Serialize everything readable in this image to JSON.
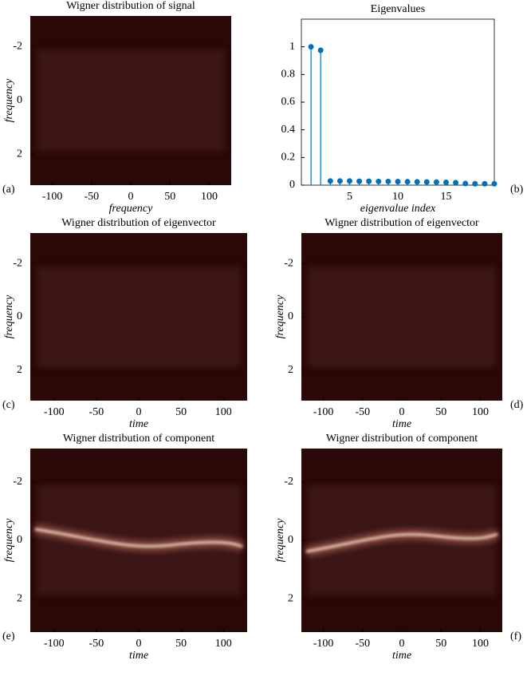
{
  "chart_data": [
    {
      "type": "heatmap",
      "title": "Wigner distribution of signal",
      "xlabel": "frequency",
      "ylabel": "frequency",
      "panel_label": "(a)",
      "color": "#2a0806",
      "xlim": [
        -128,
        128
      ],
      "xticks": [
        -100,
        -50,
        0,
        50,
        100
      ],
      "ylim": [
        -3.14,
        3.14
      ],
      "yticks": [
        -2,
        0,
        2
      ],
      "y_reversed": true
    },
    {
      "type": "stem",
      "title": "Eigenvalues",
      "xlabel": "eigenvalue index",
      "panel_label": "(b)",
      "color": "#0072bd",
      "x": [
        1,
        2,
        3,
        4,
        5,
        6,
        7,
        8,
        9,
        10,
        11,
        12,
        13,
        14,
        15,
        16,
        17,
        18,
        19,
        20
      ],
      "values": [
        1.0,
        0.975,
        0.03,
        0.03,
        0.03,
        0.028,
        0.028,
        0.027,
        0.027,
        0.026,
        0.025,
        0.024,
        0.023,
        0.022,
        0.02,
        0.018,
        0.012,
        0.01,
        0.01,
        0.01
      ],
      "xlim": [
        0,
        20
      ],
      "xticks": [
        5,
        10,
        15
      ],
      "ylim": [
        0,
        1.2
      ],
      "yticks": [
        0,
        0.2,
        0.4,
        0.6,
        0.8,
        1
      ]
    },
    {
      "type": "heatmap",
      "title": "Wigner distribution of eigenvector",
      "xlabel": "time",
      "ylabel": "frequency",
      "panel_label": "(c)",
      "color": "#2a0806",
      "xlim": [
        -128,
        128
      ],
      "xticks": [
        -100,
        -50,
        0,
        50,
        100
      ],
      "ylim": [
        -3.14,
        3.14
      ],
      "yticks": [
        -2,
        0,
        2
      ],
      "y_reversed": true
    },
    {
      "type": "heatmap",
      "title": "Wigner distribution of eigenvector",
      "xlabel": "time",
      "ylabel": "frequency",
      "panel_label": "(d)",
      "color": "#2a0806",
      "xlim": [
        -128,
        128
      ],
      "xticks": [
        -100,
        -50,
        0,
        50,
        100
      ],
      "ylim": [
        -3.14,
        3.14
      ],
      "yticks": [
        -2,
        0,
        2
      ],
      "y_reversed": true
    },
    {
      "type": "heatmap",
      "title": "Wigner distribution of component",
      "xlabel": "time",
      "ylabel": "frequency",
      "panel_label": "(e)",
      "color": "#2a0806",
      "xlim": [
        -128,
        128
      ],
      "xticks": [
        -100,
        -50,
        0,
        50,
        100
      ],
      "ylim": [
        -3.14,
        3.14
      ],
      "yticks": [
        -2,
        0,
        2
      ],
      "y_reversed": true
    },
    {
      "type": "heatmap",
      "title": "Wigner distribution of component",
      "xlabel": "time",
      "ylabel": "frequency",
      "panel_label": "(f)",
      "color": "#2a0806",
      "xlim": [
        -128,
        128
      ],
      "xticks": [
        -100,
        -50,
        0,
        50,
        100
      ],
      "ylim": [
        -3.14,
        3.14
      ],
      "yticks": [
        -2,
        0,
        2
      ],
      "y_reversed": true
    }
  ]
}
